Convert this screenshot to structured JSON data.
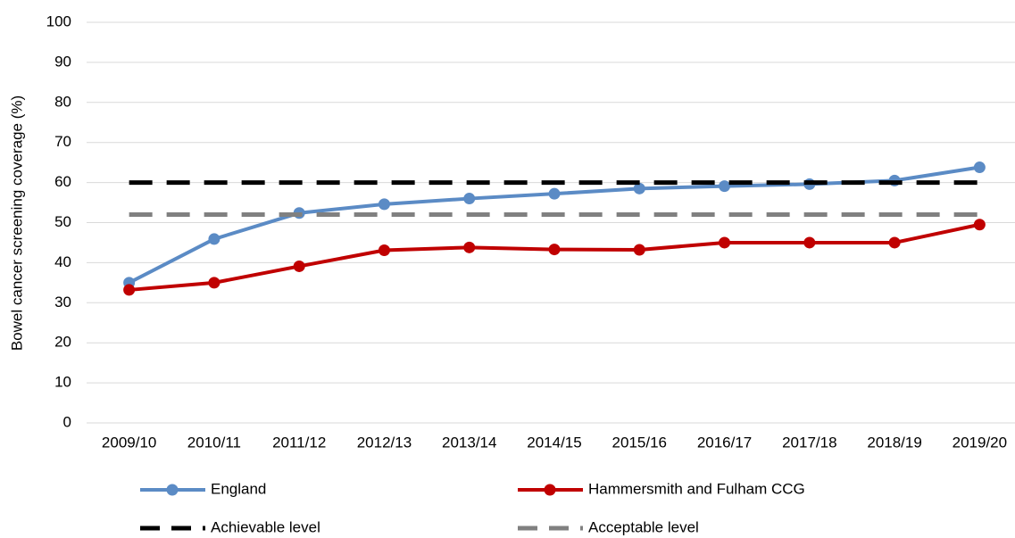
{
  "chart_data": {
    "type": "line",
    "y_label": "Bowel cancer screening coverage (%)",
    "categories": [
      "2009/10",
      "2010/11",
      "2011/12",
      "2012/13",
      "2013/14",
      "2014/15",
      "2015/16",
      "2016/17",
      "2017/18",
      "2018/19",
      "2019/20"
    ],
    "series": [
      {
        "name": "England",
        "color": "#5b8bc5",
        "dashed": false,
        "markers": true,
        "values": [
          35.0,
          45.9,
          52.4,
          54.6,
          56.0,
          57.2,
          58.5,
          59.1,
          59.6,
          60.5,
          63.8
        ]
      },
      {
        "name": "Hammersmith and Fulham CCG",
        "color": "#c00000",
        "dashed": false,
        "markers": true,
        "values": [
          33.2,
          35.0,
          39.1,
          43.1,
          43.8,
          43.3,
          43.2,
          45.0,
          45.0,
          45.0,
          49.5
        ]
      },
      {
        "name": "Achievable level",
        "color": "#000000",
        "dashed": true,
        "markers": false,
        "values": [
          60,
          60,
          60,
          60,
          60,
          60,
          60,
          60,
          60,
          60,
          60
        ]
      },
      {
        "name": "Acceptable level",
        "color": "#808080",
        "dashed": true,
        "markers": false,
        "values": [
          52,
          52,
          52,
          52,
          52,
          52,
          52,
          52,
          52,
          52,
          52
        ]
      }
    ],
    "ylim": [
      0,
      100
    ],
    "yticks": [
      0,
      10,
      20,
      30,
      40,
      50,
      60,
      70,
      80,
      90,
      100
    ],
    "grid": true
  }
}
